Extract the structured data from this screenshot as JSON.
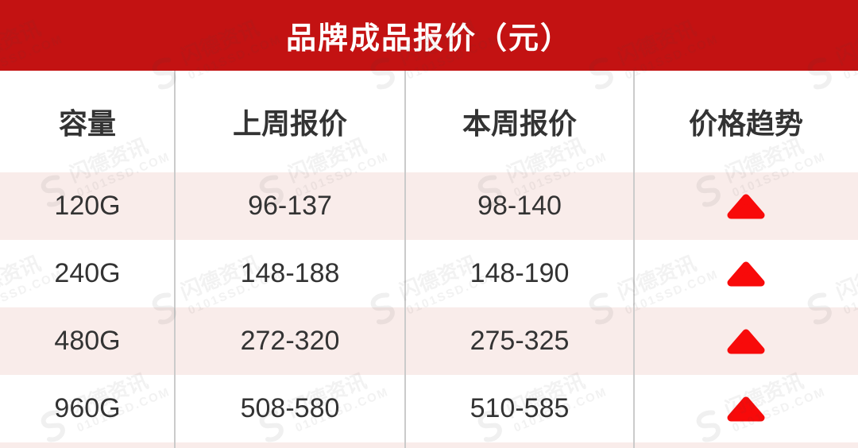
{
  "banner": {
    "title": "品牌成品报价（元）"
  },
  "table": {
    "headers": [
      "容量",
      "上周报价",
      "本周报价",
      "价格趋势"
    ],
    "rows": [
      {
        "capacity": "120G",
        "last_week": "96-137",
        "this_week": "98-140",
        "trend": "up"
      },
      {
        "capacity": "240G",
        "last_week": "148-188",
        "this_week": "148-190",
        "trend": "up"
      },
      {
        "capacity": "480G",
        "last_week": "272-320",
        "this_week": "275-325",
        "trend": "up"
      },
      {
        "capacity": "960G",
        "last_week": "508-580",
        "this_week": "510-585",
        "trend": "up"
      }
    ]
  },
  "watermark": {
    "brand": "闪德资讯",
    "domain": "0101SSD.COM"
  },
  "colors": {
    "banner_red": "#c31212",
    "arrow_red": "#f80a0a",
    "stripe_pink": "#f9ecea",
    "divider_gray": "#cbcbcb",
    "text_dark": "#333333",
    "banner_text": "#ffffff"
  }
}
